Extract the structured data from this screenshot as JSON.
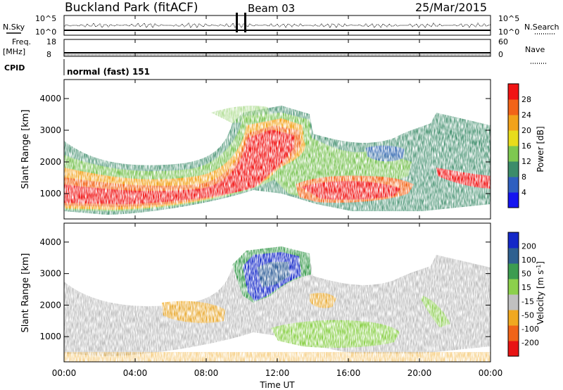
{
  "header": {
    "station": "Buckland Park (fitACF)",
    "beam": "Beam 03",
    "date": "25/Mar/2015"
  },
  "status_panels": {
    "nsky_label": "N.Sky",
    "nsky_ticks": [
      "10^5",
      "10^0"
    ],
    "nsearch_label": "N.Search",
    "nsearch_ticks": [
      "10^5",
      "10^0"
    ],
    "freq_label_1": "Freq.",
    "freq_label_2": "[MHz]",
    "freq_ticks": [
      "18",
      "8"
    ],
    "nave_label": "Nave",
    "nave_ticks": [
      "60",
      "0"
    ],
    "cpid_label": "CPID",
    "cpid_value": "normal (fast) 151"
  },
  "chart_data": [
    {
      "type": "heatmap",
      "name": "power",
      "ylabel": "Slant Range [km]",
      "yticks": [
        "1000",
        "2000",
        "3000",
        "4000"
      ],
      "ylim": [
        200,
        4600
      ],
      "colorbar_label": "Power [dB]",
      "colorbar_ticks": [
        "4",
        "8",
        "12",
        "16",
        "20",
        "24",
        "28"
      ],
      "colorscale": [
        "#1414f0",
        "#2f5fc0",
        "#3c8c6a",
        "#7ec850",
        "#e8dc1c",
        "#f2a21a",
        "#f26418",
        "#f01414"
      ],
      "xlim_hours": [
        0,
        24
      ]
    },
    {
      "type": "heatmap",
      "name": "velocity",
      "ylabel": "Slant Range [km]",
      "yticks": [
        "1000",
        "2000",
        "3000",
        "4000"
      ],
      "ylim": [
        200,
        4600
      ],
      "colorbar_label": "Velocity [m s",
      "colorbar_label_sup": "-1",
      "colorbar_label_end": "]",
      "colorbar_ticks": [
        "200",
        "100",
        "50",
        "15",
        "-15",
        "-50",
        "-100",
        "-200"
      ],
      "colorscale": [
        "#1428c8",
        "#2f6090",
        "#3c9c50",
        "#8cd04c",
        "#c0c0c0",
        "#f0a820",
        "#f06418",
        "#e81414"
      ],
      "xlabel": "Time UT",
      "xticks": [
        "00:00",
        "04:00",
        "08:00",
        "12:00",
        "16:00",
        "20:00",
        "00:00"
      ],
      "xlim_hours": [
        0,
        24
      ]
    }
  ]
}
